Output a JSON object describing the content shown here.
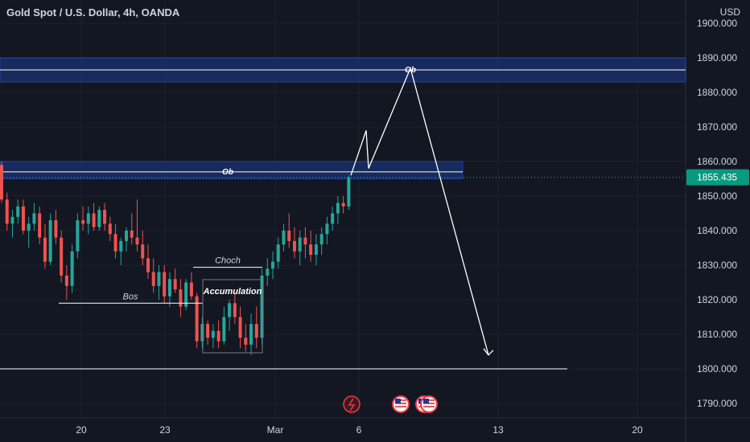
{
  "header": {
    "title": "Gold Spot / U.S. Dollar, 4h, OANDA",
    "currency": "USD"
  },
  "colors": {
    "background": "#131722",
    "grid": "#1e222d",
    "up": "#26a69a",
    "down": "#ef5350",
    "zone": "#1e3a8a",
    "price_badge": "#089981",
    "axis_text": "#d1d4dc"
  },
  "chart_data": {
    "type": "candlestick",
    "title": "Gold Spot / U.S. Dollar, 4h, OANDA",
    "ylabel": "USD",
    "ylim": [
      1787,
      1903
    ],
    "grid": true,
    "y_ticks": [
      "1900.000",
      "1890.000",
      "1880.000",
      "1870.000",
      "1860.000",
      "1850.000",
      "1840.000",
      "1830.000",
      "1820.000",
      "1810.000",
      "1800.000",
      "1790.000"
    ],
    "x_ticks": [
      "20",
      "23",
      "Mar",
      "6",
      "13",
      "20"
    ],
    "last_price": "1855.435",
    "candles": [
      [
        1859,
        1860,
        1848,
        1849
      ],
      [
        1849,
        1851,
        1840,
        1842
      ],
      [
        1842,
        1846,
        1838,
        1844
      ],
      [
        1844,
        1849,
        1842,
        1847
      ],
      [
        1847,
        1849,
        1839,
        1840
      ],
      [
        1840,
        1844,
        1835,
        1842
      ],
      [
        1842,
        1848,
        1840,
        1845
      ],
      [
        1845,
        1847,
        1836,
        1838
      ],
      [
        1838,
        1842,
        1829,
        1831
      ],
      [
        1831,
        1845,
        1830,
        1843
      ],
      [
        1843,
        1846,
        1836,
        1838
      ],
      [
        1838,
        1840,
        1825,
        1827
      ],
      [
        1827,
        1830,
        1820,
        1824
      ],
      [
        1824,
        1836,
        1822,
        1834
      ],
      [
        1834,
        1845,
        1832,
        1843
      ],
      [
        1843,
        1847,
        1840,
        1842
      ],
      [
        1842,
        1847,
        1839,
        1845
      ],
      [
        1845,
        1848,
        1840,
        1841
      ],
      [
        1841,
        1847,
        1840,
        1846
      ],
      [
        1846,
        1848,
        1840,
        1842
      ],
      [
        1842,
        1844,
        1837,
        1839
      ],
      [
        1839,
        1842,
        1832,
        1834
      ],
      [
        1834,
        1838,
        1830,
        1837
      ],
      [
        1837,
        1841,
        1834,
        1840
      ],
      [
        1840,
        1845,
        1836,
        1838
      ],
      [
        1838,
        1849,
        1834,
        1836
      ],
      [
        1836,
        1840,
        1830,
        1832
      ],
      [
        1832,
        1836,
        1826,
        1828
      ],
      [
        1828,
        1832,
        1822,
        1824
      ],
      [
        1824,
        1830,
        1820,
        1828
      ],
      [
        1828,
        1830,
        1819,
        1821
      ],
      [
        1821,
        1828,
        1818,
        1826
      ],
      [
        1826,
        1829,
        1822,
        1823
      ],
      [
        1823,
        1826,
        1815,
        1818
      ],
      [
        1818,
        1826,
        1817,
        1825
      ],
      [
        1825,
        1828,
        1820,
        1821
      ],
      [
        1821,
        1822,
        1806,
        1808
      ],
      [
        1808,
        1815,
        1806,
        1813
      ],
      [
        1813,
        1814,
        1807,
        1809
      ],
      [
        1809,
        1813,
        1806,
        1811
      ],
      [
        1811,
        1814,
        1806,
        1808
      ],
      [
        1808,
        1818,
        1807,
        1815
      ],
      [
        1815,
        1820,
        1811,
        1819
      ],
      [
        1819,
        1822,
        1813,
        1815
      ],
      [
        1815,
        1818,
        1806,
        1809
      ],
      [
        1809,
        1813,
        1805,
        1807
      ],
      [
        1807,
        1816,
        1804,
        1813
      ],
      [
        1813,
        1818,
        1806,
        1809
      ],
      [
        1809,
        1829,
        1807,
        1827
      ],
      [
        1827,
        1832,
        1824,
        1829
      ],
      [
        1829,
        1834,
        1826,
        1831
      ],
      [
        1831,
        1838,
        1829,
        1836
      ],
      [
        1836,
        1842,
        1834,
        1840
      ],
      [
        1840,
        1845,
        1835,
        1837
      ],
      [
        1837,
        1841,
        1832,
        1834
      ],
      [
        1834,
        1840,
        1830,
        1838
      ],
      [
        1838,
        1841,
        1832,
        1836
      ],
      [
        1836,
        1840,
        1831,
        1833
      ],
      [
        1833,
        1839,
        1830,
        1836
      ],
      [
        1836,
        1841,
        1833,
        1839
      ],
      [
        1839,
        1844,
        1836,
        1842
      ],
      [
        1842,
        1847,
        1840,
        1845
      ],
      [
        1845,
        1850,
        1842,
        1848
      ],
      [
        1848,
        1850,
        1845,
        1847
      ],
      [
        1847,
        1856,
        1846,
        1855.4
      ]
    ],
    "zones": [
      {
        "label": "Ob",
        "low": 1883,
        "high": 1890,
        "line": 1886.5
      },
      {
        "label": "Ob",
        "low": 1855,
        "high": 1860,
        "line": 1857
      }
    ],
    "levels": [
      {
        "label": "Bos",
        "price": 1819
      },
      {
        "label": "Choch",
        "price": 1828
      },
      {
        "label": "",
        "price": 1800
      }
    ],
    "annotations": [
      "Accumulation"
    ],
    "projection": [
      {
        "x": "Mar 6",
        "y": 1856
      },
      {
        "x": "Mar 6",
        "y": 1869
      },
      {
        "x": "Mar 6",
        "y": 1858
      },
      {
        "x": "Mar 8",
        "y": 1887
      },
      {
        "x": "Mar 11",
        "y": 1804
      }
    ]
  }
}
